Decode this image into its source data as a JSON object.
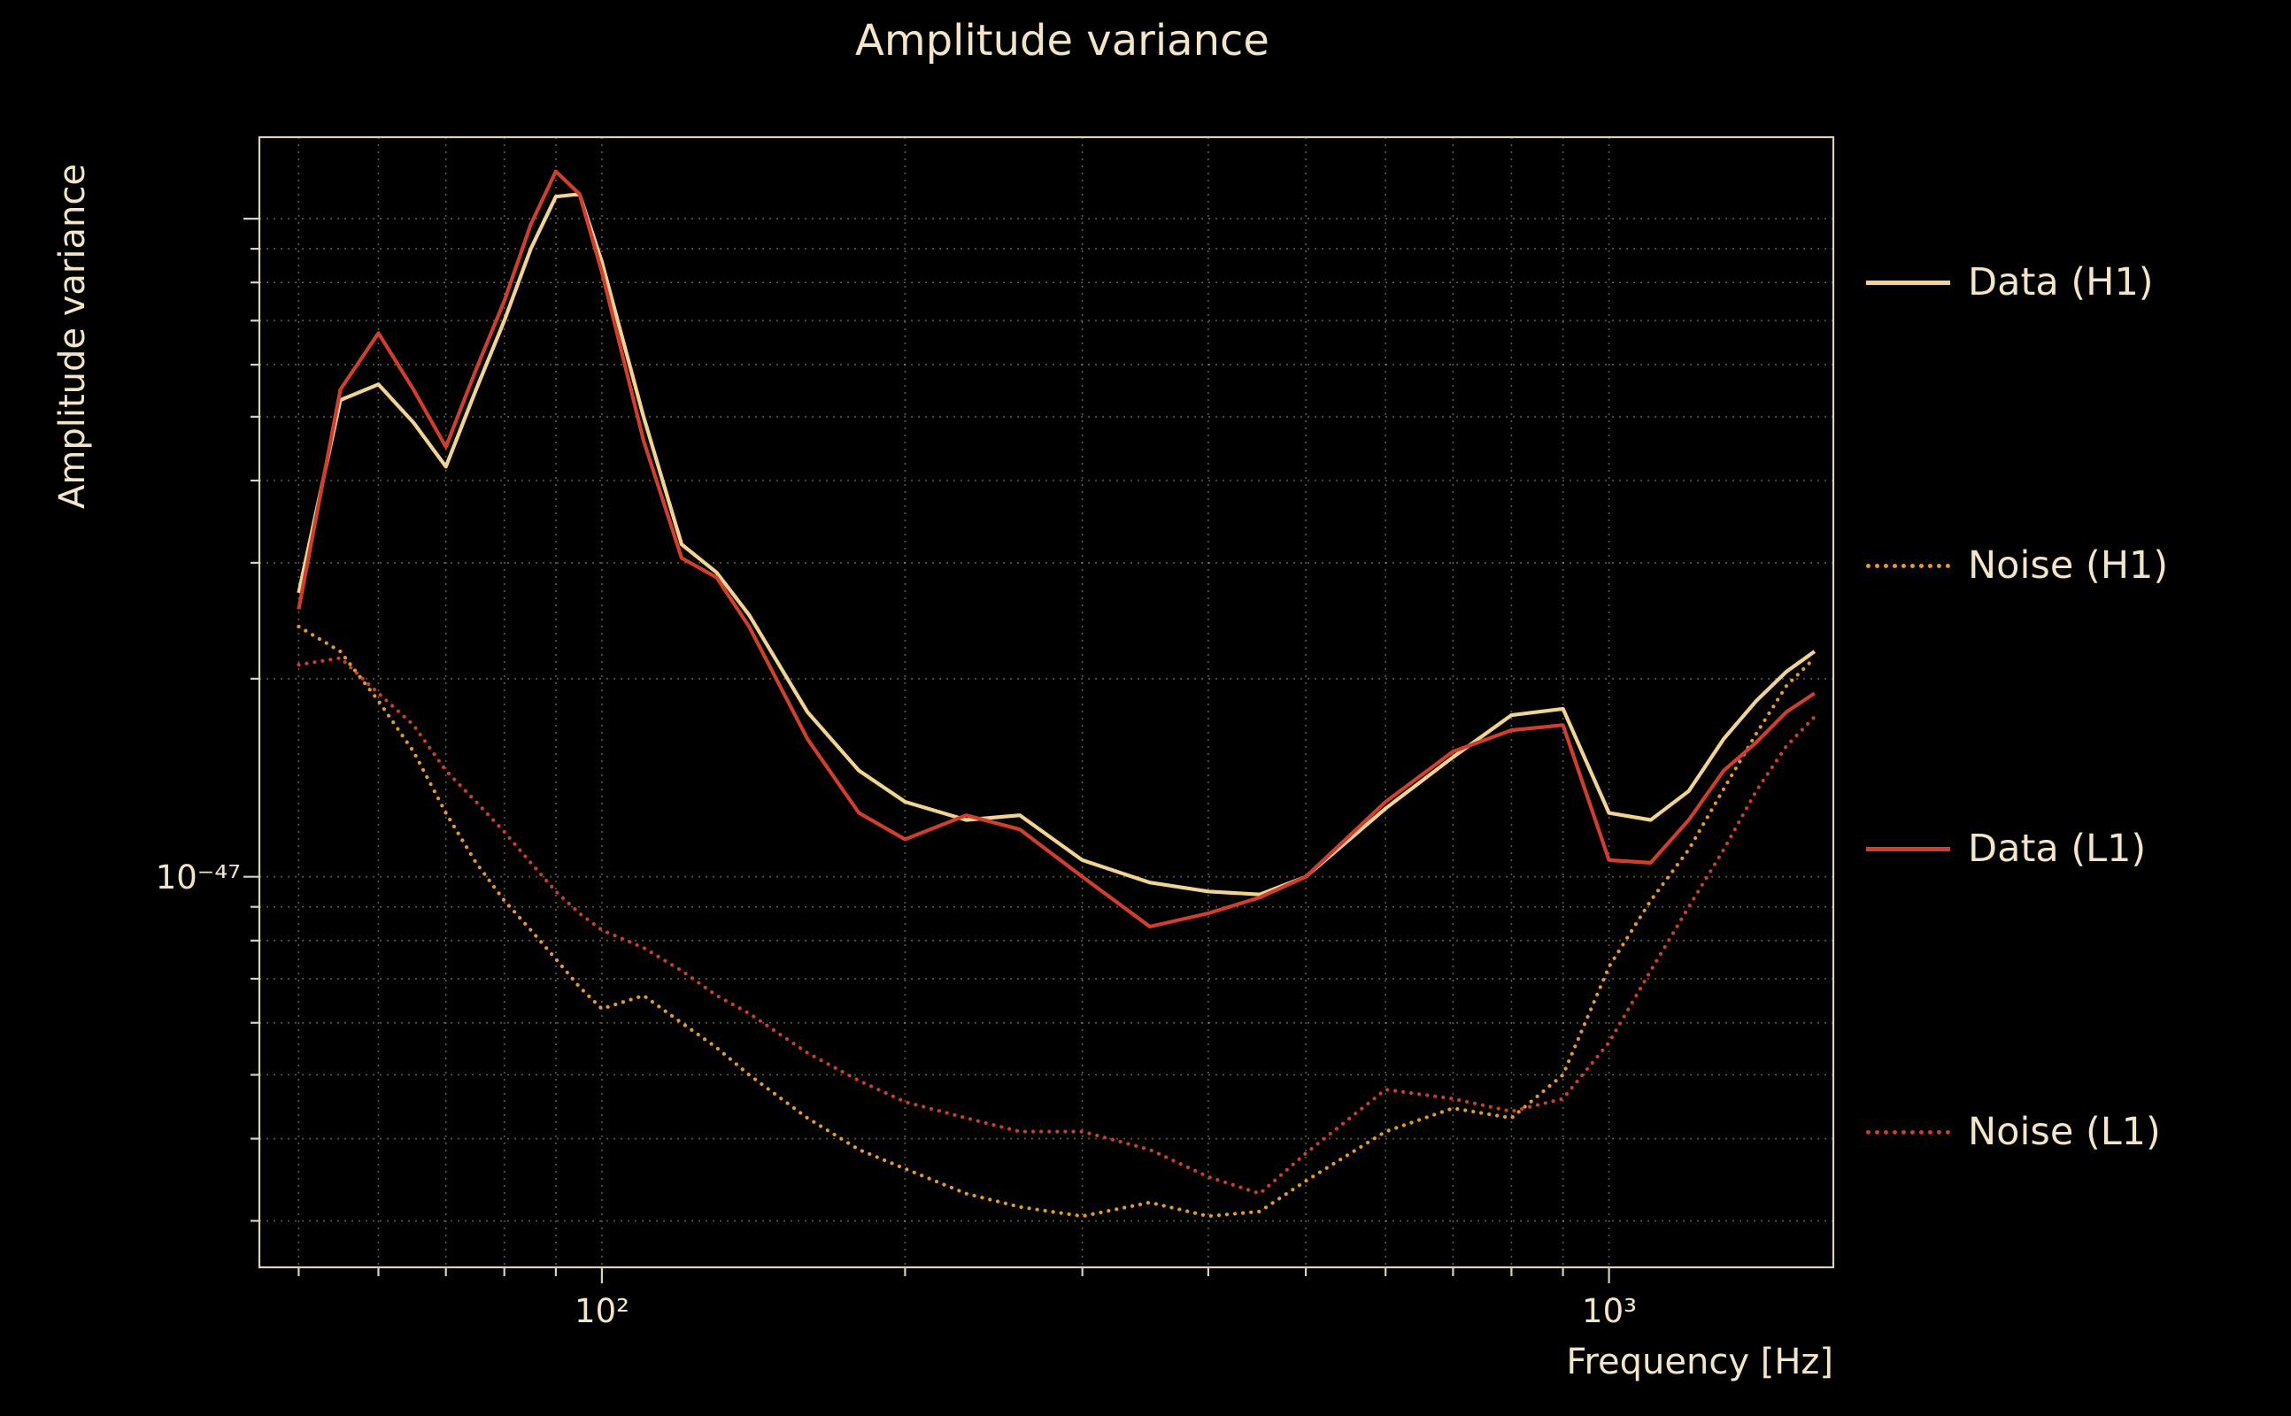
{
  "title": "Amplitude variance",
  "chart_data": {
    "type": "line",
    "title": "Amplitude variance",
    "xlabel": "Frequency [Hz]",
    "ylabel": "Amplitude variance",
    "x_scale": "log",
    "y_scale": "log",
    "xlim": [
      45.7,
      1670
    ],
    "ylim": [
      2.55e-48,
      1.33e-46
    ],
    "grid": "both axes, dotted minor+major log gridlines",
    "legend_position": "right, outside plot",
    "x_tick_labels": [
      {
        "value": 100,
        "label": "10²"
      },
      {
        "value": 1000,
        "label": "10³"
      }
    ],
    "y_tick_labels": [
      {
        "value": 1e-47,
        "label": "10⁻⁴⁷"
      }
    ],
    "x": [
      50,
      55,
      60,
      65,
      70,
      75,
      80,
      85,
      90,
      95,
      100,
      110,
      120,
      130,
      140,
      160,
      180,
      200,
      230,
      260,
      300,
      350,
      400,
      450,
      500,
      600,
      700,
      800,
      900,
      1000,
      1100,
      1200,
      1300,
      1400,
      1500,
      1600
    ],
    "series": [
      {
        "name": "Data (H1)",
        "color": "#f2d492",
        "style": "solid",
        "values": [
          2.7e-47,
          5.3e-47,
          5.6e-47,
          4.9e-47,
          4.2e-47,
          5.5e-47,
          7e-47,
          9e-47,
          1.08e-46,
          1.09e-46,
          8.6e-47,
          5e-47,
          3.2e-47,
          2.9e-47,
          2.5e-47,
          1.78e-47,
          1.45e-47,
          1.3e-47,
          1.22e-47,
          1.24e-47,
          1.06e-47,
          9.8e-48,
          9.5e-48,
          9.4e-48,
          1e-47,
          1.27e-47,
          1.52e-47,
          1.76e-47,
          1.8e-47,
          1.25e-47,
          1.22e-47,
          1.35e-47,
          1.62e-47,
          1.85e-47,
          2.05e-47,
          2.2e-47
        ]
      },
      {
        "name": "Noise (H1)",
        "color": "#e39b2f",
        "style": "dotted",
        "values": [
          2.4e-47,
          2.2e-47,
          1.85e-47,
          1.55e-47,
          1.25e-47,
          1.05e-47,
          9.2e-48,
          8.3e-48,
          7.5e-48,
          6.8e-48,
          6.3e-48,
          6.6e-48,
          6e-48,
          5.5e-48,
          5e-48,
          4.3e-48,
          3.85e-48,
          3.6e-48,
          3.3e-48,
          3.15e-48,
          3.05e-48,
          3.2e-48,
          3.05e-48,
          3.1e-48,
          3.45e-48,
          4.1e-48,
          4.45e-48,
          4.3e-48,
          5e-48,
          7.3e-48,
          9.2e-48,
          1.1e-47,
          1.36e-47,
          1.65e-47,
          1.95e-47,
          2.15e-47
        ]
      },
      {
        "name": "Data (L1)",
        "color": "#cf3f2d",
        "style": "solid",
        "values": [
          2.55e-47,
          5.5e-47,
          6.7e-47,
          5.5e-47,
          4.5e-47,
          5.9e-47,
          7.5e-47,
          9.8e-47,
          1.18e-46,
          1.09e-46,
          8.3e-47,
          4.6e-47,
          3.05e-47,
          2.85e-47,
          2.4e-47,
          1.62e-47,
          1.25e-47,
          1.14e-47,
          1.24e-47,
          1.18e-47,
          1e-47,
          8.4e-48,
          8.8e-48,
          9.3e-48,
          1e-47,
          1.3e-47,
          1.55e-47,
          1.67e-47,
          1.7e-47,
          1.06e-47,
          1.05e-47,
          1.22e-47,
          1.45e-47,
          1.6e-47,
          1.78e-47,
          1.9e-47
        ]
      },
      {
        "name": "Noise (L1)",
        "color": "#c84030",
        "style": "dotted",
        "values": [
          2.1e-47,
          2.15e-47,
          1.9e-47,
          1.7e-47,
          1.45e-47,
          1.3e-47,
          1.17e-47,
          1.05e-47,
          9.5e-48,
          8.8e-48,
          8.3e-48,
          7.8e-48,
          7.2e-48,
          6.6e-48,
          6.2e-48,
          5.4e-48,
          4.9e-48,
          4.55e-48,
          4.3e-48,
          4.1e-48,
          4.1e-48,
          3.85e-48,
          3.5e-48,
          3.3e-48,
          3.8e-48,
          4.75e-48,
          4.6e-48,
          4.4e-48,
          4.6e-48,
          5.6e-48,
          7.2e-48,
          9e-48,
          1.1e-47,
          1.35e-47,
          1.58e-47,
          1.75e-47
        ]
      }
    ]
  },
  "style": {
    "background": "#000000",
    "text_color": "#f3e6c8",
    "grid_color": "rgba(245,222,179,0.40)",
    "frame_color": "#d9d0bd"
  }
}
